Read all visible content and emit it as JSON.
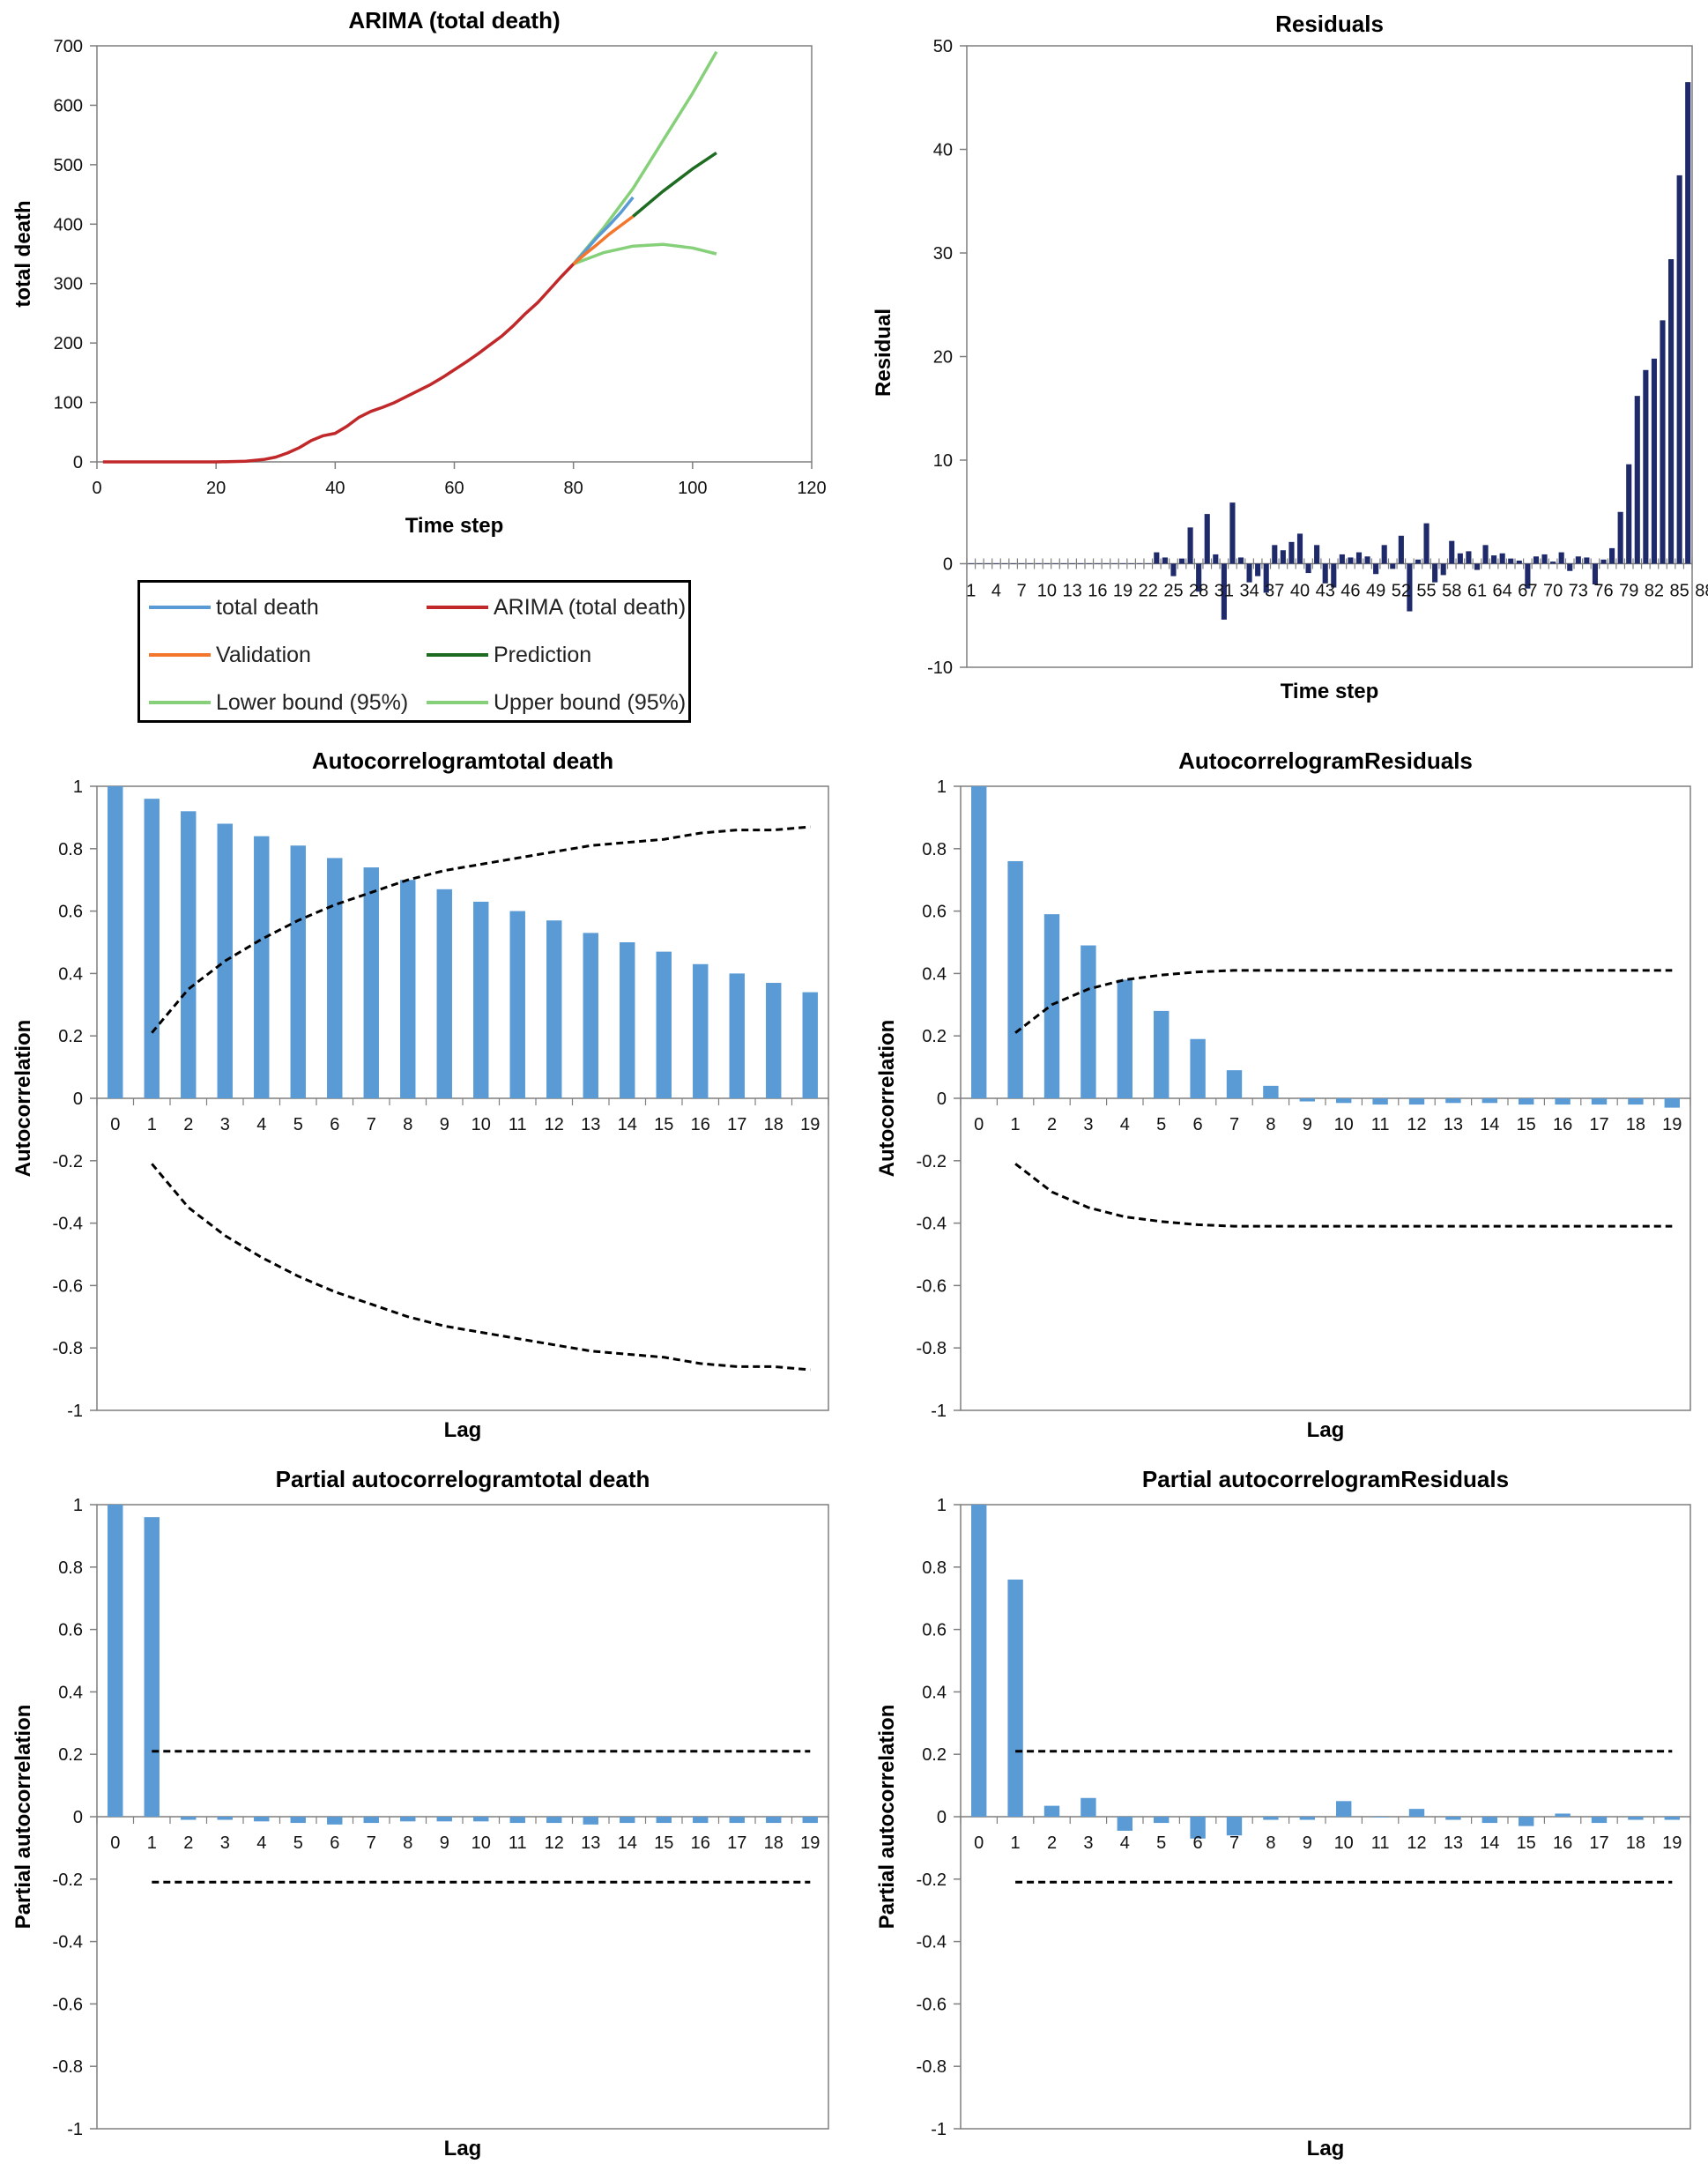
{
  "colors": {
    "total_death": "#5b9bd5",
    "arima": "#c0282a",
    "validation": "#f4762d",
    "prediction": "#1e6b22",
    "bounds": "#86d07a",
    "residual_bar": "#1f2a6a",
    "acf_bar": "#5b9bd5",
    "axis": "#7f7f7f",
    "conf": "#000000"
  },
  "legend": {
    "items": [
      {
        "label": "total death",
        "color": "#5b9bd5"
      },
      {
        "label": "ARIMA (total death)",
        "color": "#c0282a"
      },
      {
        "label": "Validation",
        "color": "#f4762d"
      },
      {
        "label": "Prediction",
        "color": "#1e6b22"
      },
      {
        "label": "Lower bound (95%)",
        "color": "#86d07a"
      },
      {
        "label": "Upper bound (95%)",
        "color": "#86d07a"
      }
    ]
  },
  "chart_data": [
    {
      "id": "arima",
      "type": "line",
      "title": "ARIMA (total death)",
      "xlabel": "Time step",
      "ylabel": "total death",
      "xlim": [
        0,
        120
      ],
      "ylim": [
        0,
        700
      ],
      "xticks": [
        0,
        20,
        40,
        60,
        80,
        100,
        120
      ],
      "yticks": [
        0,
        100,
        200,
        300,
        400,
        500,
        600,
        700
      ],
      "series": [
        {
          "name": "ARIMA (total death)",
          "color": "#c0282a",
          "x": [
            1,
            10,
            20,
            25,
            28,
            30,
            32,
            34,
            36,
            38,
            40,
            42,
            44,
            46,
            48,
            50,
            52,
            54,
            56,
            58,
            60,
            62,
            64,
            66,
            68,
            70,
            72,
            74,
            76,
            78,
            80
          ],
          "y": [
            0,
            0,
            0,
            1,
            4,
            8,
            15,
            24,
            36,
            44,
            48,
            60,
            75,
            85,
            92,
            100,
            110,
            120,
            130,
            142,
            155,
            168,
            182,
            197,
            212,
            230,
            250,
            268,
            290,
            312,
            333
          ]
        },
        {
          "name": "total death",
          "color": "#5b9bd5",
          "x": [
            80,
            82,
            84,
            86,
            88,
            90
          ],
          "y": [
            333,
            355,
            378,
            398,
            420,
            445
          ]
        },
        {
          "name": "Validation",
          "color": "#f4762d",
          "x": [
            80,
            82,
            84,
            86,
            88,
            90
          ],
          "y": [
            333,
            350,
            366,
            383,
            398,
            413
          ]
        },
        {
          "name": "Prediction",
          "color": "#1e6b22",
          "x": [
            90,
            95,
            100,
            104
          ],
          "y": [
            413,
            455,
            493,
            520
          ]
        },
        {
          "name": "Upper bound (95%)",
          "color": "#86d07a",
          "x": [
            80,
            85,
            90,
            95,
            100,
            104
          ],
          "y": [
            333,
            393,
            460,
            540,
            620,
            690
          ]
        },
        {
          "name": "Lower bound (95%)",
          "color": "#86d07a",
          "x": [
            80,
            85,
            90,
            95,
            100,
            104
          ],
          "y": [
            333,
            352,
            363,
            366,
            360,
            350
          ]
        }
      ]
    },
    {
      "id": "residuals",
      "type": "bar",
      "title": "Residuals",
      "xlabel": "Time step",
      "ylabel": "Residual",
      "ylim": [
        -10,
        50
      ],
      "yticks": [
        -10,
        0,
        10,
        20,
        30,
        40,
        50
      ],
      "x_tick_labels": [
        "1",
        "4",
        "7",
        "10",
        "13",
        "16",
        "19",
        "22",
        "25",
        "28",
        "31",
        "34",
        "37",
        "40",
        "43",
        "46",
        "49",
        "52",
        "55",
        "58",
        "61",
        "64",
        "67",
        "70",
        "73",
        "76",
        "79",
        "82",
        "85",
        "88"
      ],
      "values": [
        0,
        0,
        0,
        0,
        0,
        0,
        0,
        0,
        0,
        0,
        0,
        0,
        0,
        0,
        0,
        0,
        0,
        0,
        0,
        0,
        0,
        0,
        1.1,
        0.6,
        -1.2,
        0.5,
        3.5,
        -2.7,
        4.8,
        0.9,
        -5.4,
        5.9,
        0.6,
        -1.8,
        -1.2,
        -2.8,
        1.8,
        1.3,
        2.1,
        2.9,
        -0.9,
        1.8,
        -1.9,
        -2.3,
        0.9,
        0.6,
        1.1,
        0.7,
        -1,
        1.8,
        -0.5,
        2.7,
        -4.6,
        0.4,
        3.9,
        -1.8,
        -1.1,
        2.2,
        1,
        1.2,
        -0.6,
        1.8,
        0.8,
        1,
        0.5,
        0.3,
        -2.4,
        0.7,
        0.9,
        0.2,
        1.1,
        -0.7,
        0.7,
        0.6,
        -2,
        0.4,
        1.5,
        5,
        9.6,
        16.2,
        18.7,
        19.8,
        23.5,
        29.4,
        37.5,
        46.5
      ]
    },
    {
      "id": "acf_total",
      "type": "bar",
      "title": "Autocorrelogramtotal death",
      "xlabel": "Lag",
      "ylabel": "Autocorrelation",
      "ylim": [
        -1,
        1
      ],
      "yticks": [
        -1,
        -0.8,
        -0.6,
        -0.4,
        -0.2,
        0,
        0.2,
        0.4,
        0.6,
        0.8,
        1
      ],
      "categories": [
        "0",
        "1",
        "2",
        "3",
        "4",
        "5",
        "6",
        "7",
        "8",
        "9",
        "10",
        "11",
        "12",
        "13",
        "14",
        "15",
        "16",
        "17",
        "18",
        "19"
      ],
      "values": [
        1,
        0.96,
        0.92,
        0.88,
        0.84,
        0.81,
        0.77,
        0.74,
        0.7,
        0.67,
        0.63,
        0.6,
        0.57,
        0.53,
        0.5,
        0.47,
        0.43,
        0.4,
        0.37,
        0.34
      ],
      "conf_upper": [
        null,
        0.21,
        0.35,
        0.44,
        0.51,
        0.57,
        0.62,
        0.66,
        0.7,
        0.73,
        0.75,
        0.77,
        0.79,
        0.81,
        0.82,
        0.83,
        0.85,
        0.86,
        0.86,
        0.87
      ],
      "conf_lower": [
        null,
        -0.21,
        -0.35,
        -0.44,
        -0.51,
        -0.57,
        -0.62,
        -0.66,
        -0.7,
        -0.73,
        -0.75,
        -0.77,
        -0.79,
        -0.81,
        -0.82,
        -0.83,
        -0.85,
        -0.86,
        -0.86,
        -0.87
      ]
    },
    {
      "id": "acf_resid",
      "type": "bar",
      "title": "AutocorrelogramResiduals",
      "xlabel": "Lag",
      "ylabel": "Autocorrelation",
      "ylim": [
        -1,
        1
      ],
      "yticks": [
        -1,
        -0.8,
        -0.6,
        -0.4,
        -0.2,
        0,
        0.2,
        0.4,
        0.6,
        0.8,
        1
      ],
      "categories": [
        "0",
        "1",
        "2",
        "3",
        "4",
        "5",
        "6",
        "7",
        "8",
        "9",
        "10",
        "11",
        "12",
        "13",
        "14",
        "15",
        "16",
        "17",
        "18",
        "19"
      ],
      "values": [
        1,
        0.76,
        0.59,
        0.49,
        0.38,
        0.28,
        0.19,
        0.09,
        0.04,
        -0.01,
        -0.015,
        -0.02,
        -0.02,
        -0.015,
        -0.015,
        -0.02,
        -0.02,
        -0.02,
        -0.02,
        -0.03
      ],
      "conf_upper": [
        null,
        0.21,
        0.3,
        0.35,
        0.38,
        0.395,
        0.405,
        0.41,
        0.41,
        0.41,
        0.41,
        0.41,
        0.41,
        0.41,
        0.41,
        0.41,
        0.41,
        0.41,
        0.41,
        0.41
      ],
      "conf_lower": [
        null,
        -0.21,
        -0.3,
        -0.35,
        -0.38,
        -0.395,
        -0.405,
        -0.41,
        -0.41,
        -0.41,
        -0.41,
        -0.41,
        -0.41,
        -0.41,
        -0.41,
        -0.41,
        -0.41,
        -0.41,
        -0.41,
        -0.41
      ]
    },
    {
      "id": "pacf_total",
      "type": "bar",
      "title": "Partial autocorrelogramtotal death",
      "xlabel": "Lag",
      "ylabel": "Partial autocorrelation",
      "ylim": [
        -1,
        1
      ],
      "yticks": [
        -1,
        -0.8,
        -0.6,
        -0.4,
        -0.2,
        0,
        0.2,
        0.4,
        0.6,
        0.8,
        1
      ],
      "categories": [
        "0",
        "1",
        "2",
        "3",
        "4",
        "5",
        "6",
        "7",
        "8",
        "9",
        "10",
        "11",
        "12",
        "13",
        "14",
        "15",
        "16",
        "17",
        "18",
        "19"
      ],
      "values": [
        1,
        0.96,
        -0.01,
        -0.01,
        -0.015,
        -0.02,
        -0.025,
        -0.02,
        -0.015,
        -0.015,
        -0.015,
        -0.02,
        -0.02,
        -0.025,
        -0.02,
        -0.02,
        -0.02,
        -0.02,
        -0.02,
        -0.02
      ],
      "conf_upper": [
        null,
        0.21,
        0.21,
        0.21,
        0.21,
        0.21,
        0.21,
        0.21,
        0.21,
        0.21,
        0.21,
        0.21,
        0.21,
        0.21,
        0.21,
        0.21,
        0.21,
        0.21,
        0.21,
        0.21
      ],
      "conf_lower": [
        null,
        -0.21,
        -0.21,
        -0.21,
        -0.21,
        -0.21,
        -0.21,
        -0.21,
        -0.21,
        -0.21,
        -0.21,
        -0.21,
        -0.21,
        -0.21,
        -0.21,
        -0.21,
        -0.21,
        -0.21,
        -0.21,
        -0.21
      ]
    },
    {
      "id": "pacf_resid",
      "type": "bar",
      "title": "Partial autocorrelogramResiduals",
      "xlabel": "Lag",
      "ylabel": "Partial autocorrelation",
      "ylim": [
        -1,
        1
      ],
      "yticks": [
        -1,
        -0.8,
        -0.6,
        -0.4,
        -0.2,
        0,
        0.2,
        0.4,
        0.6,
        0.8,
        1
      ],
      "categories": [
        "0",
        "1",
        "2",
        "3",
        "4",
        "5",
        "6",
        "7",
        "8",
        "9",
        "10",
        "11",
        "12",
        "13",
        "14",
        "15",
        "16",
        "17",
        "18",
        "19"
      ],
      "values": [
        1,
        0.76,
        0.035,
        0.06,
        -0.045,
        -0.02,
        -0.07,
        -0.06,
        -0.01,
        -0.01,
        0.05,
        0.0,
        0.025,
        -0.01,
        -0.02,
        -0.03,
        0.01,
        -0.02,
        -0.01,
        -0.01
      ],
      "conf_upper": [
        null,
        0.21,
        0.21,
        0.21,
        0.21,
        0.21,
        0.21,
        0.21,
        0.21,
        0.21,
        0.21,
        0.21,
        0.21,
        0.21,
        0.21,
        0.21,
        0.21,
        0.21,
        0.21,
        0.21
      ],
      "conf_lower": [
        null,
        -0.21,
        -0.21,
        -0.21,
        -0.21,
        -0.21,
        -0.21,
        -0.21,
        -0.21,
        -0.21,
        -0.21,
        -0.21,
        -0.21,
        -0.21,
        -0.21,
        -0.21,
        -0.21,
        -0.21,
        -0.21,
        -0.21
      ]
    }
  ]
}
